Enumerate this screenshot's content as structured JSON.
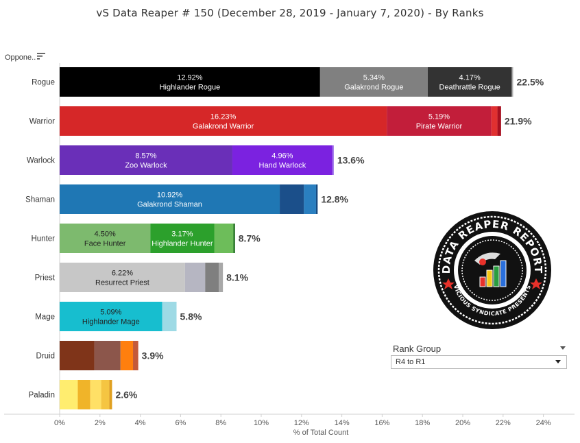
{
  "title": "vS Data Reaper #  150 (December 28, 2019 - January 7, 2020) - By Ranks",
  "sort_header": "Oppone..",
  "filter": {
    "title": "Rank Group",
    "value": "R4 to R1"
  },
  "logo": {
    "text_top": "DATA REAPER REPORT",
    "text_bottom": "VICIOUS SYNDICATE PRESENTS",
    "colors": [
      "#e8312a",
      "#f7c815",
      "#2a9d3f",
      "#2a6fdb"
    ]
  },
  "chart_data": {
    "type": "bar",
    "orientation": "horizontal-stacked",
    "xlabel": "% of Total Count",
    "xlim": [
      0,
      24.5
    ],
    "xticks": [
      0,
      2,
      4,
      6,
      8,
      10,
      12,
      14,
      16,
      18,
      20,
      22,
      24
    ],
    "xtick_labels": [
      "0%",
      "2%",
      "4%",
      "6%",
      "8%",
      "10%",
      "12%",
      "14%",
      "16%",
      "18%",
      "20%",
      "22%",
      "24%"
    ],
    "rows": [
      {
        "category": "Rogue",
        "total_label": "22.5%",
        "segments": [
          {
            "value": 12.92,
            "pct_label": "12.92%",
            "name": "Highlander Rogue",
            "color": "#000000",
            "text_color": "#ffffff"
          },
          {
            "value": 5.34,
            "pct_label": "5.34%",
            "name": "Galakrond Rogue",
            "color": "#808080",
            "text_color": "#ffffff"
          },
          {
            "value": 4.17,
            "pct_label": "4.17%",
            "name": "Deathrattle Rogue",
            "color": "#333333",
            "text_color": "#ffffff"
          },
          {
            "value": 0.07,
            "color": "#b0b0b0"
          }
        ]
      },
      {
        "category": "Warrior",
        "total_label": "21.9%",
        "segments": [
          {
            "value": 16.23,
            "pct_label": "16.23%",
            "name": "Galakrond Warrior",
            "color": "#d62728",
            "text_color": "#ffffff"
          },
          {
            "value": 5.19,
            "pct_label": "5.19%",
            "name": "Pirate Warrior",
            "color": "#c21e3a",
            "text_color": "#ffffff"
          },
          {
            "value": 0.3,
            "color": "#e03030"
          },
          {
            "value": 0.18,
            "color": "#a81020"
          }
        ]
      },
      {
        "category": "Warlock",
        "total_label": "13.6%",
        "segments": [
          {
            "value": 8.57,
            "pct_label": "8.57%",
            "name": "Zoo Warlock",
            "color": "#6a2fb8",
            "text_color": "#ffffff"
          },
          {
            "value": 4.96,
            "pct_label": "4.96%",
            "name": "Hand Warlock",
            "color": "#7b22e0",
            "text_color": "#ffffff"
          },
          {
            "value": 0.07,
            "color": "#9b6ce8"
          }
        ]
      },
      {
        "category": "Shaman",
        "total_label": "12.8%",
        "segments": [
          {
            "value": 10.92,
            "pct_label": "10.92%",
            "name": "Galakrond Shaman",
            "color": "#1f77b4",
            "text_color": "#ffffff"
          },
          {
            "value": 1.2,
            "color": "#1b4f8a"
          },
          {
            "value": 0.6,
            "color": "#2a7fc0"
          },
          {
            "value": 0.08,
            "color": "#174a80"
          }
        ]
      },
      {
        "category": "Hunter",
        "total_label": "8.7%",
        "segments": [
          {
            "value": 4.5,
            "pct_label": "4.50%",
            "name": "Face Hunter",
            "color": "#7dba6e",
            "text_color": "#222222"
          },
          {
            "value": 3.17,
            "pct_label": "3.17%",
            "name": "Highlander Hunter",
            "color": "#2ca02c",
            "text_color": "#ffffff"
          },
          {
            "value": 0.95,
            "color": "#6dbd5a"
          },
          {
            "value": 0.08,
            "color": "#1f6e1f"
          }
        ]
      },
      {
        "category": "Priest",
        "total_label": "8.1%",
        "segments": [
          {
            "value": 6.22,
            "pct_label": "6.22%",
            "name": "Resurrect Priest",
            "color": "#c7c7c7",
            "text_color": "#222222"
          },
          {
            "value": 1.0,
            "color": "#b6b6c2"
          },
          {
            "value": 0.68,
            "color": "#7f7f7f"
          },
          {
            "value": 0.2,
            "color": "#a8a8a8"
          }
        ]
      },
      {
        "category": "Mage",
        "total_label": "5.8%",
        "segments": [
          {
            "value": 5.09,
            "pct_label": "5.09%",
            "name": "Highlander Mage",
            "color": "#17becf",
            "text_color": "#222222"
          },
          {
            "value": 0.71,
            "color": "#9edae5"
          }
        ]
      },
      {
        "category": "Druid",
        "total_label": "3.9%",
        "segments": [
          {
            "value": 1.72,
            "color": "#7f3419"
          },
          {
            "value": 1.3,
            "color": "#8c564b"
          },
          {
            "value": 0.62,
            "color": "#ff7f0e"
          },
          {
            "value": 0.26,
            "color": "#c45a3a"
          }
        ]
      },
      {
        "category": "Paladin",
        "total_label": "2.6%",
        "segments": [
          {
            "value": 0.9,
            "color": "#ffed6f"
          },
          {
            "value": 0.62,
            "color": "#f0b429"
          },
          {
            "value": 0.54,
            "color": "#ffe066"
          },
          {
            "value": 0.4,
            "color": "#f5c542"
          },
          {
            "value": 0.14,
            "color": "#e0a020"
          }
        ]
      }
    ]
  }
}
